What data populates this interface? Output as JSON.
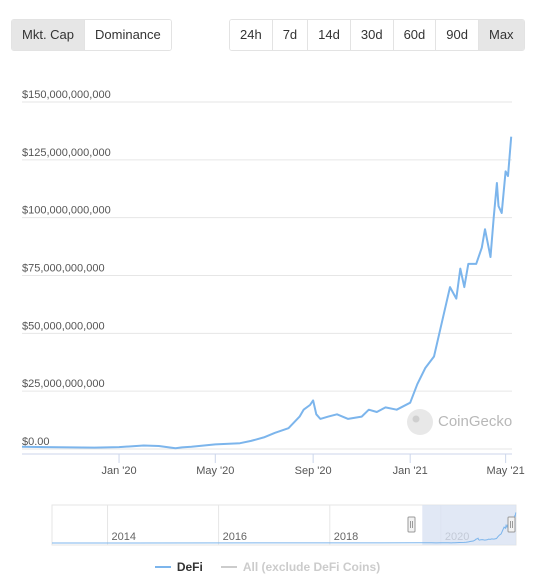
{
  "view_toggle": {
    "mktcap_label": "Mkt. Cap",
    "dominance_label": "Dominance"
  },
  "range_buttons": [
    "24h",
    "7d",
    "14d",
    "30d",
    "60d",
    "90d",
    "Max"
  ],
  "active_range": "Max",
  "watermark": "CoinGecko",
  "colors": {
    "series": "#7cb5ec",
    "grid": "#e6e6e6",
    "legend_inactive": "#cccccc",
    "navigator_fill": "#d9e2f3"
  },
  "chart_data": {
    "type": "line",
    "title": "",
    "xlabel": "",
    "ylabel": "",
    "ylim": [
      0,
      150000000000
    ],
    "y_ticks": [
      "$0.00",
      "$25,000,000,000",
      "$50,000,000,000",
      "$75,000,000,000",
      "$100,000,000,000",
      "$125,000,000,000",
      "$150,000,000,000"
    ],
    "x_ticks": [
      "Jan '20",
      "May '20",
      "Sep '20",
      "Jan '21",
      "May '21"
    ],
    "series": [
      {
        "name": "DeFi",
        "x": [
          "2019-09-01",
          "2019-10-01",
          "2019-11-01",
          "2019-12-01",
          "2020-01-01",
          "2020-02-01",
          "2020-02-20",
          "2020-03-12",
          "2020-03-20",
          "2020-04-01",
          "2020-05-01",
          "2020-06-01",
          "2020-06-15",
          "2020-07-01",
          "2020-07-15",
          "2020-08-01",
          "2020-08-15",
          "2020-08-20",
          "2020-08-28",
          "2020-09-01",
          "2020-09-05",
          "2020-09-10",
          "2020-09-20",
          "2020-10-01",
          "2020-10-15",
          "2020-11-01",
          "2020-11-10",
          "2020-11-20",
          "2020-12-01",
          "2020-12-15",
          "2021-01-01",
          "2021-01-10",
          "2021-01-20",
          "2021-01-31",
          "2021-02-10",
          "2021-02-20",
          "2021-02-28",
          "2021-03-05",
          "2021-03-10",
          "2021-03-15",
          "2021-03-25",
          "2021-04-01",
          "2021-04-05",
          "2021-04-12",
          "2021-04-16",
          "2021-04-20",
          "2021-04-22",
          "2021-04-26",
          "2021-05-01",
          "2021-05-04",
          "2021-05-08"
        ],
        "values": [
          1000000000,
          800000000,
          700000000,
          600000000,
          800000000,
          1500000000,
          1300000000,
          300000000,
          700000000,
          1000000000,
          2000000000,
          2500000000,
          3500000000,
          5000000000,
          7000000000,
          9000000000,
          14000000000,
          17000000000,
          19000000000,
          21000000000,
          15000000000,
          13000000000,
          14000000000,
          15000000000,
          13000000000,
          14000000000,
          17000000000,
          16000000000,
          18000000000,
          17000000000,
          20000000000,
          28000000000,
          35000000000,
          40000000000,
          55000000000,
          70000000000,
          65000000000,
          78000000000,
          70000000000,
          80000000000,
          80000000000,
          87000000000,
          95000000000,
          83000000000,
          100000000000,
          115000000000,
          105000000000,
          102000000000,
          120000000000,
          118000000000,
          135000000000
        ]
      }
    ],
    "legend": [
      {
        "label": "DeFi",
        "active": true
      },
      {
        "label": "All (exclude DeFi Coins)",
        "active": false
      }
    ],
    "navigator": {
      "ticks": [
        "2014",
        "2016",
        "2018",
        "2020"
      ]
    }
  }
}
